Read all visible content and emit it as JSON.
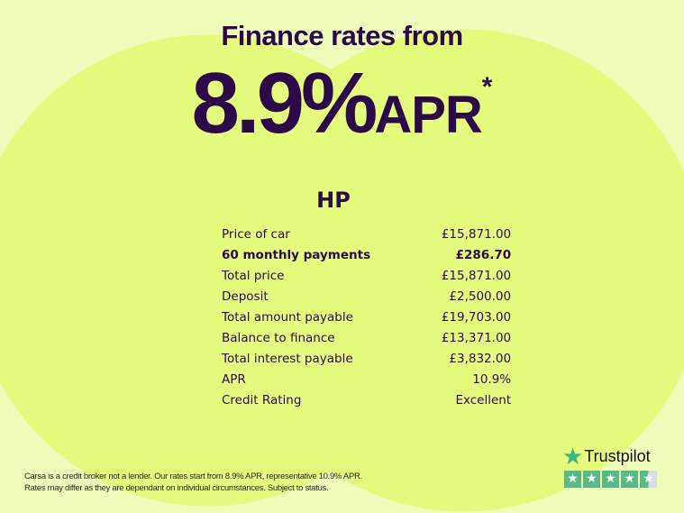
{
  "header": {
    "headline": "Finance rates from",
    "rate": "8.9%",
    "rate_suffix": "APR",
    "asterisk": "*"
  },
  "finance": {
    "title": "HP",
    "rows": [
      {
        "label": "Price of car",
        "value": "£15,871.00",
        "bold": false
      },
      {
        "label": "60 monthly payments",
        "value": "£286.70",
        "bold": true
      },
      {
        "label": "Total price",
        "value": "£15,871.00",
        "bold": false
      },
      {
        "label": "Deposit",
        "value": "£2,500.00",
        "bold": false
      },
      {
        "label": "Total amount payable",
        "value": "£19,703.00",
        "bold": false
      },
      {
        "label": "Balance to finance",
        "value": "£13,371.00",
        "bold": false
      },
      {
        "label": "Total interest payable",
        "value": "£3,832.00",
        "bold": false
      },
      {
        "label": "APR",
        "value": "10.9%",
        "bold": false
      },
      {
        "label": "Credit Rating",
        "value": "Excellent",
        "bold": false
      }
    ]
  },
  "disclaimer": {
    "line1": "Carsa is a credit broker not a lender. Our rates start from 8.9% APR, representative 10.9% APR.",
    "line2": "Rates may differ as they are dependant on individual circumstances. Subject to status."
  },
  "trustpilot": {
    "name": "Trustpilot",
    "rating_stars": 4.5,
    "icon": "star-icon"
  },
  "colors": {
    "text": "#2c0a4a",
    "background": "#eefdb9",
    "circles": "#e4fb7d",
    "trustpilot_green": "#5aba87"
  }
}
